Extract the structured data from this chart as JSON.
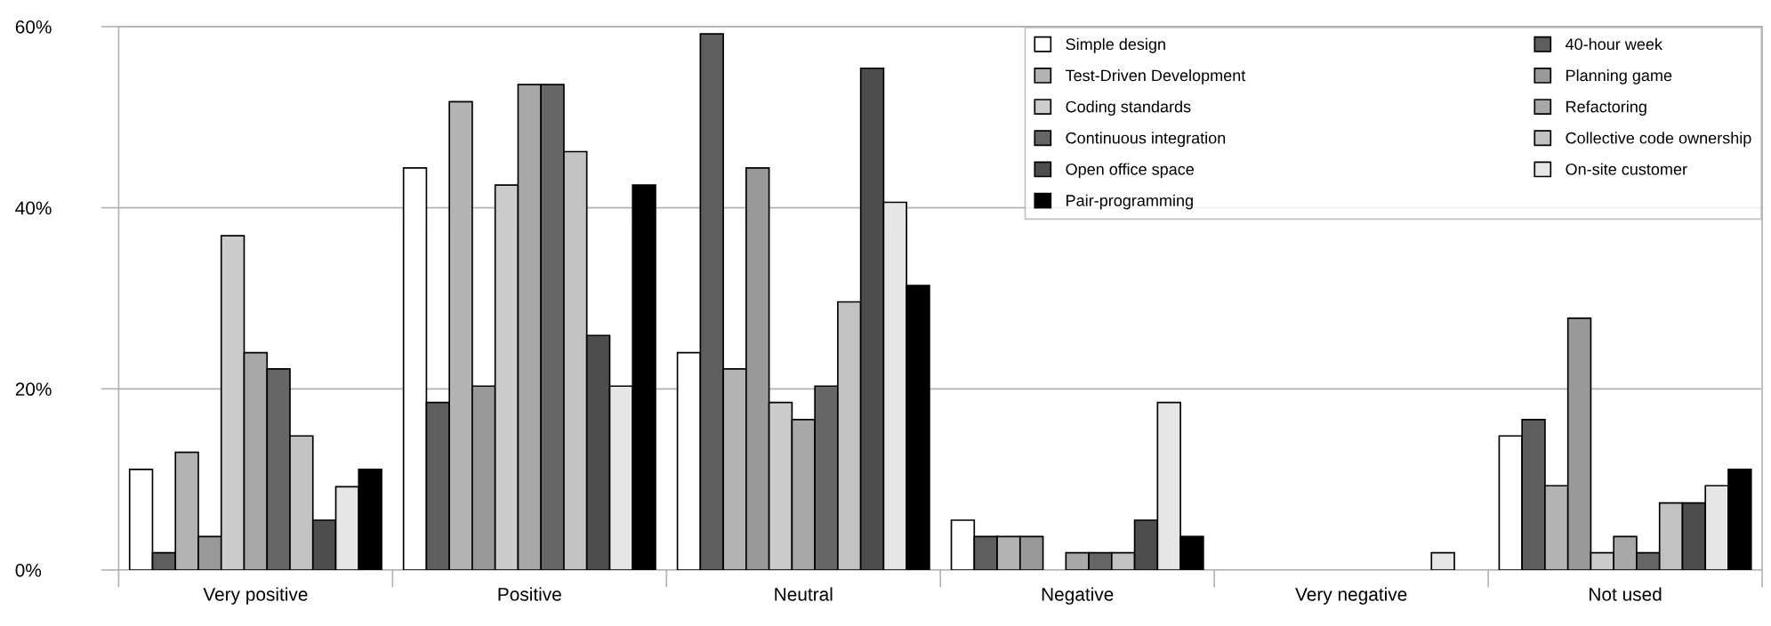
{
  "chart_data": {
    "type": "bar",
    "categories": [
      "Very positive",
      "Positive",
      "Neutral",
      "Negative",
      "Very negative",
      "Not used"
    ],
    "series": [
      {
        "name": "Simple design",
        "color": "#ffffff",
        "values": [
          11.1,
          44.4,
          24.0,
          5.5,
          0,
          14.8
        ]
      },
      {
        "name": "40-hour week",
        "color": "#5e5e5e",
        "values": [
          1.9,
          18.5,
          59.2,
          3.7,
          0,
          16.6
        ]
      },
      {
        "name": "Test-Driven Development",
        "color": "#b3b3b3",
        "values": [
          13.0,
          51.7,
          22.2,
          3.7,
          0,
          9.3
        ]
      },
      {
        "name": "Planning game",
        "color": "#999999",
        "values": [
          3.7,
          20.3,
          44.4,
          3.7,
          0,
          27.8
        ]
      },
      {
        "name": "Coding standards",
        "color": "#cccccc",
        "values": [
          36.9,
          42.5,
          18.5,
          0,
          0,
          1.9
        ]
      },
      {
        "name": "Refactoring",
        "color": "#a8a8a8",
        "values": [
          24.0,
          53.6,
          16.6,
          1.9,
          0,
          3.7
        ]
      },
      {
        "name": "Continuous integration",
        "color": "#666666",
        "values": [
          22.2,
          53.6,
          20.3,
          1.9,
          0,
          1.9
        ]
      },
      {
        "name": "Collective code ownership",
        "color": "#c2c2c2",
        "values": [
          14.8,
          46.2,
          29.6,
          1.9,
          0,
          7.4
        ]
      },
      {
        "name": "Open office space",
        "color": "#4d4d4d",
        "values": [
          5.5,
          25.9,
          55.4,
          5.5,
          0,
          7.4
        ]
      },
      {
        "name": "On-site customer",
        "color": "#e6e6e6",
        "values": [
          9.2,
          20.3,
          40.6,
          18.5,
          1.9,
          9.3
        ]
      },
      {
        "name": "Pair-programming",
        "color": "#000000",
        "values": [
          11.1,
          42.5,
          31.4,
          3.7,
          0,
          11.1
        ]
      }
    ],
    "ylim": [
      0,
      60
    ],
    "yticks": [
      {
        "value": 0,
        "label": "0%"
      },
      {
        "value": 20,
        "label": "20%"
      },
      {
        "value": 40,
        "label": "40%"
      },
      {
        "value": 60,
        "label": "60%"
      }
    ],
    "grid": "y",
    "legend": "top right"
  }
}
